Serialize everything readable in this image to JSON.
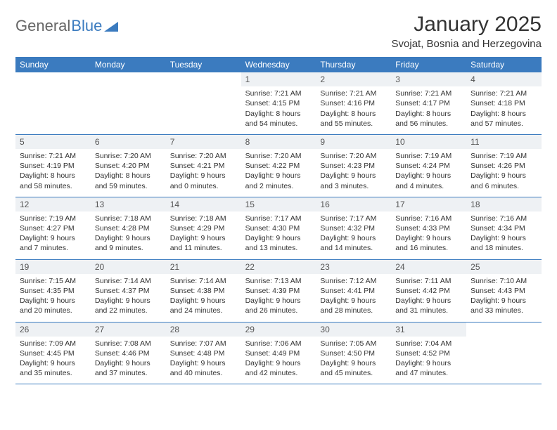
{
  "brand": {
    "part1": "General",
    "part2": "Blue"
  },
  "title": "January 2025",
  "subtitle": "Svojat, Bosnia and Herzegovina",
  "colors": {
    "header_bg": "#3b7bbf",
    "header_text": "#ffffff",
    "daynum_bg": "#eef1f4",
    "border": "#3b7bbf",
    "text": "#333333",
    "background": "#ffffff"
  },
  "day_names": [
    "Sunday",
    "Monday",
    "Tuesday",
    "Wednesday",
    "Thursday",
    "Friday",
    "Saturday"
  ],
  "first_weekday_index": 3,
  "days_in_month": 31,
  "days": {
    "1": {
      "sunrise": "7:21 AM",
      "sunset": "4:15 PM",
      "daylight": "8 hours and 54 minutes."
    },
    "2": {
      "sunrise": "7:21 AM",
      "sunset": "4:16 PM",
      "daylight": "8 hours and 55 minutes."
    },
    "3": {
      "sunrise": "7:21 AM",
      "sunset": "4:17 PM",
      "daylight": "8 hours and 56 minutes."
    },
    "4": {
      "sunrise": "7:21 AM",
      "sunset": "4:18 PM",
      "daylight": "8 hours and 57 minutes."
    },
    "5": {
      "sunrise": "7:21 AM",
      "sunset": "4:19 PM",
      "daylight": "8 hours and 58 minutes."
    },
    "6": {
      "sunrise": "7:20 AM",
      "sunset": "4:20 PM",
      "daylight": "8 hours and 59 minutes."
    },
    "7": {
      "sunrise": "7:20 AM",
      "sunset": "4:21 PM",
      "daylight": "9 hours and 0 minutes."
    },
    "8": {
      "sunrise": "7:20 AM",
      "sunset": "4:22 PM",
      "daylight": "9 hours and 2 minutes."
    },
    "9": {
      "sunrise": "7:20 AM",
      "sunset": "4:23 PM",
      "daylight": "9 hours and 3 minutes."
    },
    "10": {
      "sunrise": "7:19 AM",
      "sunset": "4:24 PM",
      "daylight": "9 hours and 4 minutes."
    },
    "11": {
      "sunrise": "7:19 AM",
      "sunset": "4:26 PM",
      "daylight": "9 hours and 6 minutes."
    },
    "12": {
      "sunrise": "7:19 AM",
      "sunset": "4:27 PM",
      "daylight": "9 hours and 7 minutes."
    },
    "13": {
      "sunrise": "7:18 AM",
      "sunset": "4:28 PM",
      "daylight": "9 hours and 9 minutes."
    },
    "14": {
      "sunrise": "7:18 AM",
      "sunset": "4:29 PM",
      "daylight": "9 hours and 11 minutes."
    },
    "15": {
      "sunrise": "7:17 AM",
      "sunset": "4:30 PM",
      "daylight": "9 hours and 13 minutes."
    },
    "16": {
      "sunrise": "7:17 AM",
      "sunset": "4:32 PM",
      "daylight": "9 hours and 14 minutes."
    },
    "17": {
      "sunrise": "7:16 AM",
      "sunset": "4:33 PM",
      "daylight": "9 hours and 16 minutes."
    },
    "18": {
      "sunrise": "7:16 AM",
      "sunset": "4:34 PM",
      "daylight": "9 hours and 18 minutes."
    },
    "19": {
      "sunrise": "7:15 AM",
      "sunset": "4:35 PM",
      "daylight": "9 hours and 20 minutes."
    },
    "20": {
      "sunrise": "7:14 AM",
      "sunset": "4:37 PM",
      "daylight": "9 hours and 22 minutes."
    },
    "21": {
      "sunrise": "7:14 AM",
      "sunset": "4:38 PM",
      "daylight": "9 hours and 24 minutes."
    },
    "22": {
      "sunrise": "7:13 AM",
      "sunset": "4:39 PM",
      "daylight": "9 hours and 26 minutes."
    },
    "23": {
      "sunrise": "7:12 AM",
      "sunset": "4:41 PM",
      "daylight": "9 hours and 28 minutes."
    },
    "24": {
      "sunrise": "7:11 AM",
      "sunset": "4:42 PM",
      "daylight": "9 hours and 31 minutes."
    },
    "25": {
      "sunrise": "7:10 AM",
      "sunset": "4:43 PM",
      "daylight": "9 hours and 33 minutes."
    },
    "26": {
      "sunrise": "7:09 AM",
      "sunset": "4:45 PM",
      "daylight": "9 hours and 35 minutes."
    },
    "27": {
      "sunrise": "7:08 AM",
      "sunset": "4:46 PM",
      "daylight": "9 hours and 37 minutes."
    },
    "28": {
      "sunrise": "7:07 AM",
      "sunset": "4:48 PM",
      "daylight": "9 hours and 40 minutes."
    },
    "29": {
      "sunrise": "7:06 AM",
      "sunset": "4:49 PM",
      "daylight": "9 hours and 42 minutes."
    },
    "30": {
      "sunrise": "7:05 AM",
      "sunset": "4:50 PM",
      "daylight": "9 hours and 45 minutes."
    },
    "31": {
      "sunrise": "7:04 AM",
      "sunset": "4:52 PM",
      "daylight": "9 hours and 47 minutes."
    }
  },
  "labels": {
    "sunrise_prefix": "Sunrise: ",
    "sunset_prefix": "Sunset: ",
    "daylight_prefix": "Daylight: "
  }
}
